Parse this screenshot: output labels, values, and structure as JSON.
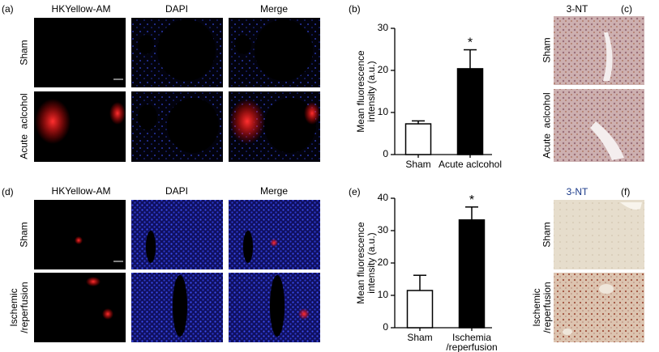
{
  "figure": {
    "panels": [
      "(a)",
      "(b)",
      "(c)",
      "(d)",
      "(e)",
      "(f)"
    ],
    "a": {
      "columns": [
        "HKYellow-AM",
        "DAPI",
        "Merge"
      ],
      "rows": [
        "Sham",
        "Acute  aclcohol"
      ]
    },
    "c": {
      "title": "3-NT",
      "rows": [
        "Sham",
        "Acute  aclcohol"
      ]
    },
    "d": {
      "columns": [
        "HKYellow-AM",
        "DAPI",
        "Merge"
      ],
      "rows": [
        "Sham",
        "Ischemic /reperfusion"
      ]
    },
    "f": {
      "title": "3-NT",
      "rows": [
        "Sham",
        "Ischemic /reperfusion"
      ]
    }
  },
  "chart_data": [
    {
      "type": "bar",
      "y_label": "Mean fluorescence intensity (a.u.)",
      "categories": [
        "Sham",
        "Acute aclcohol"
      ],
      "values": [
        7.3,
        20.4
      ],
      "errors": [
        0.7,
        4.5
      ],
      "colors": [
        "#ffffff",
        "#000000"
      ],
      "annotation": "*",
      "ylim": [
        0,
        30
      ],
      "yticks": [
        0,
        10,
        20,
        30
      ]
    },
    {
      "type": "bar",
      "y_label": "Mean fluorescence intensity (a.u.)",
      "categories": [
        "Sham",
        "Ischemia /reperfusion"
      ],
      "values": [
        11.5,
        33.3
      ],
      "errors": [
        4.7,
        4.0
      ],
      "colors": [
        "#ffffff",
        "#000000"
      ],
      "annotation": "*",
      "ylim": [
        0,
        40
      ],
      "yticks": [
        0,
        10,
        20,
        30,
        40
      ]
    }
  ]
}
